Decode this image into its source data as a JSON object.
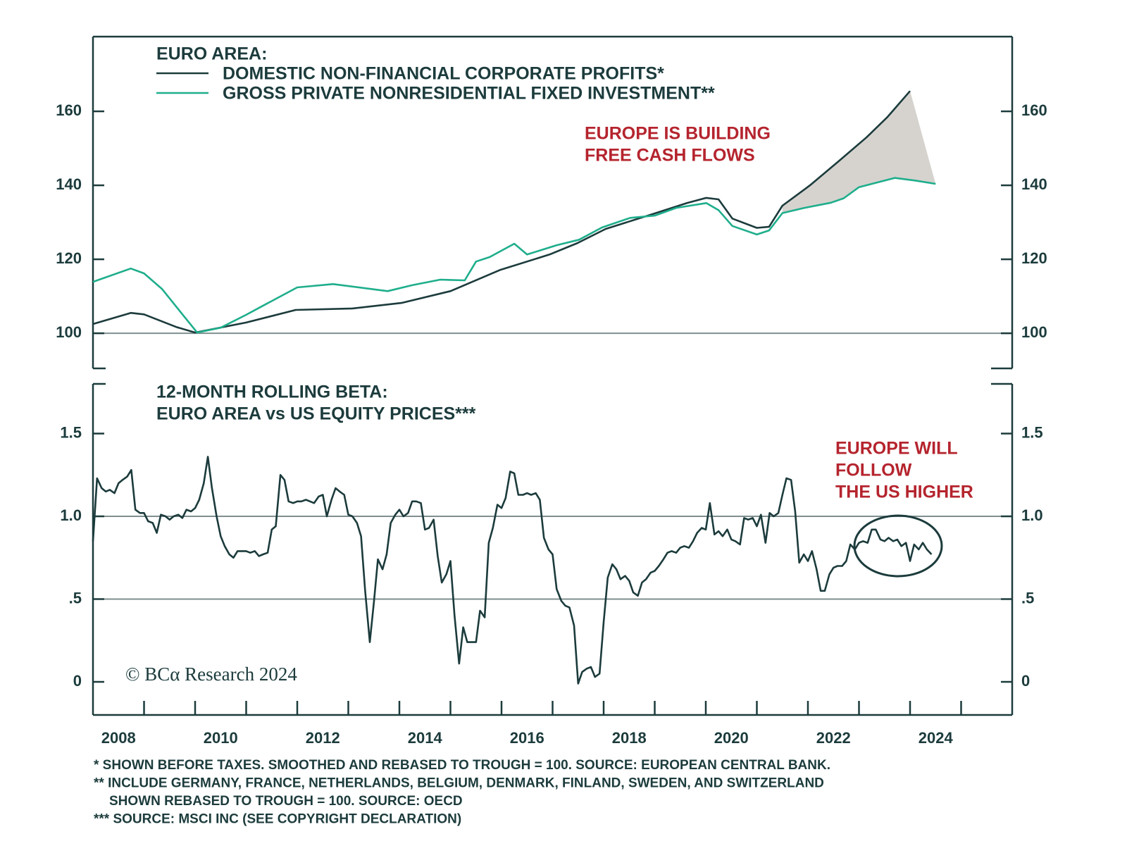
{
  "chart_data": [
    {
      "type": "line",
      "legend_title": "EURO AREA:",
      "series": [
        {
          "name": "DOMESTIC NON-FINANCIAL CORPORATE PROFITS*",
          "color": "#1c3b3c",
          "x": [
            2008.0,
            2008.74,
            2009.0,
            2009.63,
            2010.0,
            2011.0,
            2011.97,
            2013.08,
            2014.04,
            2015.0,
            2015.97,
            2016.94,
            2017.49,
            2018.04,
            2019.0,
            2019.63,
            2020.01,
            2020.25,
            2020.52,
            2021.0,
            2021.24,
            2021.5,
            2022.04,
            2022.6,
            2023.15,
            2023.56,
            2024.0
          ],
          "values": [
            102.5,
            105.5,
            105.1,
            101.7,
            100.2,
            102.9,
            106.3,
            106.7,
            108.2,
            111.4,
            117.1,
            121.3,
            124.4,
            128.2,
            132.4,
            135.2,
            136.6,
            136.2,
            131.0,
            128.5,
            128.8,
            134.5,
            140.0,
            146.5,
            153.0,
            158.5,
            165.5
          ]
        },
        {
          "name": "GROSS PRIVATE NONRESIDENTIAL FIXED INVESTMENT**",
          "color": "#1fae8c",
          "x": [
            2008.0,
            2008.74,
            2009.0,
            2009.35,
            2009.74,
            2010.04,
            2010.5,
            2011.0,
            2011.35,
            2012.0,
            2012.7,
            2013.77,
            2014.25,
            2014.8,
            2015.28,
            2015.5,
            2015.77,
            2016.25,
            2016.5,
            2017.08,
            2017.52,
            2017.97,
            2018.52,
            2019.0,
            2019.42,
            2020.01,
            2020.25,
            2020.52,
            2021.0,
            2021.24,
            2021.5,
            2021.9,
            2022.45,
            2022.7,
            2023.0,
            2023.7,
            2024.1,
            2024.5
          ],
          "values": [
            113.9,
            117.5,
            116.2,
            112.0,
            105.3,
            100.2,
            101.5,
            105.0,
            107.6,
            112.4,
            113.3,
            111.4,
            113.0,
            114.5,
            114.3,
            119.4,
            120.6,
            124.2,
            121.3,
            123.8,
            125.3,
            128.6,
            131.2,
            131.8,
            133.9,
            135.2,
            133.3,
            129.0,
            126.7,
            127.8,
            132.5,
            133.8,
            135.3,
            136.5,
            139.5,
            142.0,
            141.3,
            140.4
          ]
        }
      ],
      "shade": {
        "color": "#d6d3cf",
        "start": 2021.5
      },
      "annotations": [
        {
          "lines": [
            "EUROPE IS BUILDING",
            "FREE CASH FLOWS"
          ],
          "color": "#b5242e"
        }
      ],
      "xlim": [
        2008,
        2026
      ],
      "ylim": [
        90.5,
        180.2
      ],
      "yticks": [
        100,
        120,
        140,
        160
      ],
      "grid_lines": [
        100
      ]
    },
    {
      "type": "line",
      "title": [
        "12-MONTH ROLLING BETA:",
        "EURO AREA vs US EQUITY PRICES***"
      ],
      "color": "#1c3b3c",
      "x": [
        2008.0,
        2008.08,
        2008.17,
        2008.25,
        2008.33,
        2008.42,
        2008.5,
        2008.58,
        2008.67,
        2008.75,
        2008.83,
        2008.92,
        2009.0,
        2009.08,
        2009.17,
        2009.25,
        2009.33,
        2009.42,
        2009.5,
        2009.58,
        2009.67,
        2009.75,
        2009.83,
        2009.92,
        2010.0,
        2010.08,
        2010.17,
        2010.25,
        2010.33,
        2010.42,
        2010.5,
        2010.58,
        2010.67,
        2010.75,
        2010.83,
        2010.92,
        2011.0,
        2011.08,
        2011.17,
        2011.25,
        2011.33,
        2011.42,
        2011.5,
        2011.58,
        2011.67,
        2011.75,
        2011.83,
        2011.92,
        2012.0,
        2012.08,
        2012.17,
        2012.25,
        2012.33,
        2012.42,
        2012.5,
        2012.58,
        2012.67,
        2012.75,
        2012.83,
        2012.92,
        2013.0,
        2013.08,
        2013.17,
        2013.25,
        2013.33,
        2013.42,
        2013.5,
        2013.58,
        2013.67,
        2013.75,
        2013.83,
        2013.92,
        2014.0,
        2014.08,
        2014.17,
        2014.25,
        2014.33,
        2014.42,
        2014.5,
        2014.58,
        2014.67,
        2014.75,
        2014.83,
        2014.92,
        2015.0,
        2015.08,
        2015.17,
        2015.25,
        2015.33,
        2015.42,
        2015.5,
        2015.58,
        2015.67,
        2015.75,
        2015.83,
        2015.92,
        2016.0,
        2016.08,
        2016.17,
        2016.25,
        2016.33,
        2016.42,
        2016.5,
        2016.58,
        2016.67,
        2016.75,
        2016.83,
        2016.92,
        2017.0,
        2017.08,
        2017.17,
        2017.25,
        2017.33,
        2017.42,
        2017.5,
        2017.58,
        2017.67,
        2017.75,
        2017.83,
        2017.92,
        2018.0,
        2018.08,
        2018.17,
        2018.25,
        2018.33,
        2018.42,
        2018.5,
        2018.58,
        2018.67,
        2018.75,
        2018.83,
        2018.92,
        2019.0,
        2019.08,
        2019.17,
        2019.25,
        2019.33,
        2019.42,
        2019.5,
        2019.58,
        2019.67,
        2019.75,
        2019.83,
        2019.92,
        2020.0,
        2020.08,
        2020.17,
        2020.25,
        2020.33,
        2020.42,
        2020.5,
        2020.58,
        2020.67,
        2020.75,
        2020.83,
        2020.92,
        2021.0,
        2021.08,
        2021.17,
        2021.25,
        2021.33,
        2021.42,
        2021.5,
        2021.58,
        2021.67,
        2021.75,
        2021.83,
        2021.92,
        2022.0,
        2022.08,
        2022.17,
        2022.25,
        2022.33,
        2022.42,
        2022.5,
        2022.58,
        2022.67,
        2022.75,
        2022.83,
        2022.92,
        2023.0,
        2023.08,
        2023.17,
        2023.25,
        2023.33,
        2023.42,
        2023.5,
        2023.58,
        2023.67,
        2023.75,
        2023.83,
        2023.92,
        2024.0,
        2024.08,
        2024.17,
        2024.25,
        2024.33,
        2024.42
      ],
      "values": [
        0.85,
        1.23,
        1.17,
        1.15,
        1.16,
        1.14,
        1.2,
        1.22,
        1.24,
        1.28,
        1.04,
        1.02,
        1.02,
        0.97,
        0.96,
        0.9,
        1.01,
        1.0,
        0.98,
        1.0,
        1.01,
        0.99,
        1.04,
        1.03,
        1.05,
        1.1,
        1.2,
        1.36,
        1.17,
        1.0,
        0.88,
        0.82,
        0.77,
        0.75,
        0.79,
        0.79,
        0.79,
        0.78,
        0.79,
        0.76,
        0.77,
        0.78,
        0.92,
        0.94,
        1.25,
        1.22,
        1.09,
        1.08,
        1.09,
        1.09,
        1.1,
        1.09,
        1.08,
        1.12,
        1.13,
        1.0,
        1.1,
        1.17,
        1.15,
        1.13,
        1.01,
        1.0,
        0.96,
        0.88,
        0.55,
        0.24,
        0.48,
        0.74,
        0.68,
        0.77,
        0.96,
        1.01,
        1.04,
        1.0,
        1.02,
        1.09,
        1.09,
        1.08,
        0.92,
        0.93,
        0.98,
        0.76,
        0.6,
        0.65,
        0.73,
        0.4,
        0.11,
        0.33,
        0.24,
        0.24,
        0.24,
        0.43,
        0.39,
        0.84,
        0.93,
        1.07,
        1.05,
        1.11,
        1.27,
        1.26,
        1.13,
        1.13,
        1.14,
        1.13,
        1.14,
        1.1,
        0.87,
        0.8,
        0.77,
        0.56,
        0.49,
        0.46,
        0.45,
        0.34,
        -0.01,
        0.06,
        0.08,
        0.09,
        0.03,
        0.05,
        0.36,
        0.63,
        0.71,
        0.68,
        0.62,
        0.64,
        0.61,
        0.54,
        0.52,
        0.6,
        0.62,
        0.66,
        0.67,
        0.7,
        0.74,
        0.78,
        0.79,
        0.78,
        0.81,
        0.82,
        0.81,
        0.85,
        0.9,
        0.93,
        0.92,
        1.08,
        0.89,
        0.91,
        0.88,
        0.92,
        0.86,
        0.85,
        0.83,
        0.99,
        0.98,
        0.99,
        0.94,
        1.01,
        0.84,
        1.02,
        1.0,
        1.02,
        1.13,
        1.23,
        1.22,
        1.03,
        0.72,
        0.77,
        0.73,
        0.79,
        0.68,
        0.55,
        0.55,
        0.65,
        0.69,
        0.7,
        0.7,
        0.73,
        0.83,
        0.8,
        0.84,
        0.85,
        0.84,
        0.92,
        0.92,
        0.86,
        0.85,
        0.87,
        0.85,
        0.86,
        0.82,
        0.84,
        0.73,
        0.83,
        0.8,
        0.84,
        0.8,
        0.77
      ],
      "annotations": [
        {
          "lines": [
            "EUROPE WILL",
            "FOLLOW",
            "THE US HIGHER"
          ],
          "color": "#b5242e"
        }
      ],
      "xlim": [
        2008,
        2026
      ],
      "xticks": [
        {
          "value": 2008.5,
          "label": "2008"
        },
        {
          "value": 2010.5,
          "label": "2010"
        },
        {
          "value": 2012.5,
          "label": "2012"
        },
        {
          "value": 2014.5,
          "label": "2014"
        },
        {
          "value": 2016.5,
          "label": "2016"
        },
        {
          "value": 2018.5,
          "label": "2018"
        },
        {
          "value": 2020.5,
          "label": "2020"
        },
        {
          "value": 2022.5,
          "label": "2022"
        },
        {
          "value": 2024.5,
          "label": "2024"
        }
      ],
      "xminor_ticks": [
        2009,
        2010,
        2011,
        2012,
        2013,
        2014,
        2015,
        2016,
        2017,
        2018,
        2019,
        2020,
        2021,
        2022,
        2023,
        2024,
        2025
      ],
      "ylim": [
        -0.2,
        1.8
      ],
      "yticks": [
        0,
        {
          "value": 0.5,
          "label": ".5"
        },
        {
          "value": 1,
          "label": "1.0"
        },
        1.5
      ],
      "grid_lines": [
        0.5,
        1
      ]
    }
  ],
  "copyright": "© BCα Research 2024",
  "footnotes": [
    "* SHOWN BEFORE TAXES. SMOOTHED AND REBASED TO TROUGH = 100. SOURCE: EUROPEAN CENTRAL BANK.",
    "** INCLUDE GERMANY, FRANCE, NETHERLANDS, BELGIUM, DENMARK, FINLAND, SWEDEN, AND SWITZERLAND",
    "SHOWN REBASED TO TROUGH = 100. SOURCE: OECD",
    "*** SOURCE: MSCI INC (SEE COPYRIGHT DECLARATION)"
  ]
}
